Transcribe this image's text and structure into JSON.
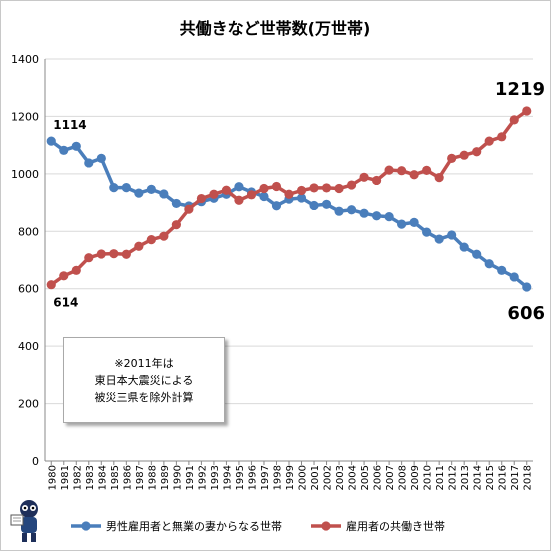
{
  "chart_data": {
    "type": "line",
    "title": "共働きなど世帯数(万世帯)",
    "ylim": [
      0,
      1400
    ],
    "yticks": [
      0,
      200,
      400,
      600,
      800,
      1000,
      1200,
      1400
    ],
    "grid": true,
    "legend_position": "bottom",
    "x": [
      "1980",
      "1981",
      "1982",
      "1983",
      "1984",
      "1985",
      "1986",
      "1987",
      "1988",
      "1989",
      "1990",
      "1991",
      "1992",
      "1993",
      "1994",
      "1995",
      "1996",
      "1997",
      "1998",
      "1999",
      "2000",
      "2001",
      "2002",
      "2003",
      "2004",
      "2005",
      "2006",
      "2007",
      "2008",
      "2009",
      "2010",
      "2011",
      "2012",
      "2013",
      "2014",
      "2015",
      "2016",
      "2017",
      "2018"
    ],
    "series": [
      {
        "name": "男性雇用者と無業の妻からなる世帯",
        "color": "#4a7ebb",
        "values": [
          1114,
          1082,
          1096,
          1038,
          1054,
          952,
          952,
          933,
          946,
          930,
          897,
          888,
          903,
          915,
          929,
          955,
          937,
          921,
          889,
          912,
          916,
          890,
          894,
          870,
          875,
          863,
          854,
          851,
          825,
          831,
          797,
          773,
          787,
          745,
          720,
          687,
          664,
          641,
          606
        ]
      },
      {
        "name": "雇用者の共働き世帯",
        "color": "#c0504d",
        "values": [
          614,
          645,
          664,
          708,
          721,
          722,
          720,
          748,
          771,
          783,
          823,
          877,
          914,
          929,
          943,
          908,
          927,
          949,
          956,
          929,
          942,
          951,
          951,
          949,
          961,
          988,
          977,
          1013,
          1011,
          997,
          1012,
          987,
          1054,
          1065,
          1077,
          1114,
          1129,
          1188,
          1219
        ]
      }
    ],
    "annotations": {
      "first_blue": "1114",
      "first_red": "614",
      "last_red": "1219",
      "last_blue": "606"
    }
  },
  "note": {
    "lines": [
      "※2011年は",
      "東日本大震災による",
      "被災三県を除外計算"
    ]
  }
}
